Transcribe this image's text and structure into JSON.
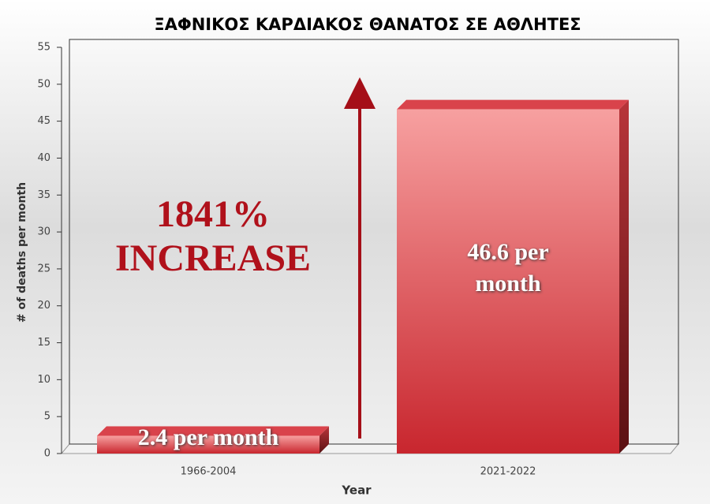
{
  "chart_data": {
    "type": "bar3d",
    "title": "ΞΑΦΝΙΚΟΣ ΚΑΡΔΙΑΚΟΣ ΘΑΝΑΤΟΣ ΣΕ ΑΘΛΗΤΕΣ",
    "categories": [
      "1966-2004",
      "2021-2022"
    ],
    "values": [
      2.4,
      46.6
    ],
    "value_labels": [
      "2.4 per month",
      "46.6 per month"
    ],
    "annotation": "1841% INCREASE",
    "x_label": "Year",
    "y_label": "# of deaths per month",
    "color": "#d9434b",
    "ylim": [
      0,
      55
    ],
    "yticks": [
      0,
      5,
      10,
      15,
      20,
      25,
      30,
      35,
      40,
      45,
      50,
      55
    ]
  }
}
